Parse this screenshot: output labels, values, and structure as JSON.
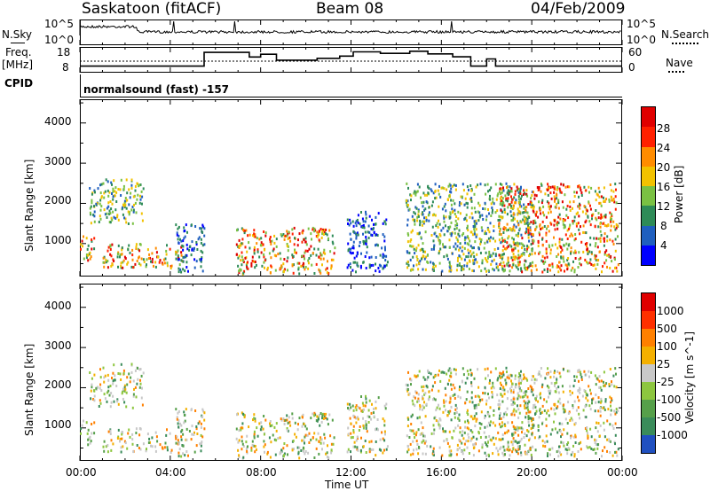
{
  "header": {
    "station": "Saskatoon (fitACF)",
    "beam": "Beam 08",
    "date": "04/Feb/2009"
  },
  "side_labels": {
    "nsky": "N.Sky",
    "freq": "Freq.",
    "mhz": "[MHz]",
    "cpid": "CPID",
    "nsearch": "N.Search",
    "nave": "Nave",
    "cpid_text": "normalsound (fast) -157"
  },
  "top_strip": {
    "left_ticks": [
      "10^5",
      "10^0"
    ],
    "right_ticks": [
      "10^5",
      "10^0"
    ]
  },
  "freq_strip": {
    "left_ticks": [
      "18",
      "8"
    ],
    "right_ticks": [
      "60",
      "0"
    ],
    "freq_steps": [
      [
        0,
        9.6
      ],
      [
        5.5,
        9.6
      ],
      [
        5.5,
        17
      ],
      [
        7.5,
        17
      ],
      [
        7.5,
        14.5
      ],
      [
        8.0,
        14.5
      ],
      [
        8.0,
        16
      ],
      [
        8.7,
        16
      ],
      [
        8.7,
        12.8
      ],
      [
        10.5,
        12.8
      ],
      [
        10.5,
        13.8
      ],
      [
        11.5,
        13.8
      ],
      [
        11.5,
        15
      ],
      [
        12.1,
        15
      ],
      [
        12.1,
        17.3
      ],
      [
        13.3,
        17.3
      ],
      [
        13.3,
        16.5
      ],
      [
        14.6,
        16.5
      ],
      [
        14.6,
        17.6
      ],
      [
        15.4,
        17.6
      ],
      [
        15.4,
        16.2
      ],
      [
        16.5,
        16.2
      ],
      [
        16.5,
        14.6
      ],
      [
        17.3,
        14.6
      ],
      [
        17.3,
        9.6
      ],
      [
        18.0,
        9.6
      ],
      [
        18.0,
        13.5
      ],
      [
        18.4,
        13.5
      ],
      [
        18.4,
        9.6
      ],
      [
        24,
        9.6
      ]
    ],
    "nave_level": 13
  },
  "x_axis": {
    "title": "Time UT",
    "tick_labels": [
      "00:00",
      "04:00",
      "08:00",
      "12:00",
      "16:00",
      "20:00",
      "00:00"
    ],
    "range_hours": [
      0,
      24
    ]
  },
  "power_panel": {
    "ylabel": "Slant Range [km]",
    "y_ticks": [
      "1000",
      "2000",
      "3000",
      "4000"
    ],
    "ylim": [
      180,
      4590
    ],
    "scale_label": "Power [dB]",
    "scale_ticks": [
      "4",
      "8",
      "12",
      "16",
      "20",
      "24",
      "28"
    ],
    "colors": [
      "#0000ff",
      "#1f5fbf",
      "#2e8b57",
      "#7ac143",
      "#f2c200",
      "#ff8c00",
      "#ff2000",
      "#e00000"
    ]
  },
  "velocity_panel": {
    "ylabel": "Slant Range [km]",
    "y_ticks": [
      "1000",
      "2000",
      "3000",
      "4000"
    ],
    "ylim": [
      180,
      4590
    ],
    "scale_label": "Velocity [m s^-1]",
    "scale_ticks": [
      "1000",
      "500",
      "100",
      "25",
      "-25",
      "-100",
      "-500",
      "-1000"
    ],
    "colors": [
      "#2050c0",
      "#3a8c5a",
      "#56a04a",
      "#8dc63f",
      "#c8c8c8",
      "#f4b000",
      "#ff8000",
      "#ff3000",
      "#e00000"
    ]
  },
  "chart_data": {
    "type": "heatmap",
    "title": "Saskatoon (fitACF)",
    "xlabel": "Time UT",
    "ylabel": "Slant Range [km]",
    "x_range_hours": [
      0,
      24
    ],
    "y_range_km": [
      180,
      4590
    ],
    "power_scatter_regions": [
      {
        "t0": 0.0,
        "t1": 0.6,
        "r0": 500,
        "r1": 1200,
        "power": "high"
      },
      {
        "t0": 0.4,
        "t1": 2.8,
        "r0": 1500,
        "r1": 2600,
        "power": "mid"
      },
      {
        "t0": 1.0,
        "t1": 4.5,
        "r0": 400,
        "r1": 1000,
        "power": "high"
      },
      {
        "t0": 4.2,
        "t1": 5.5,
        "r0": 300,
        "r1": 1500,
        "power": "low"
      },
      {
        "t0": 6.9,
        "t1": 11.3,
        "r0": 250,
        "r1": 1400,
        "power": "high"
      },
      {
        "t0": 11.8,
        "t1": 13.6,
        "r0": 300,
        "r1": 1800,
        "power": "low"
      },
      {
        "t0": 14.4,
        "t1": 20.0,
        "r0": 300,
        "r1": 2500,
        "power": "mid"
      },
      {
        "t0": 18.5,
        "t1": 23.8,
        "r0": 300,
        "r1": 2500,
        "power": "high"
      }
    ]
  }
}
